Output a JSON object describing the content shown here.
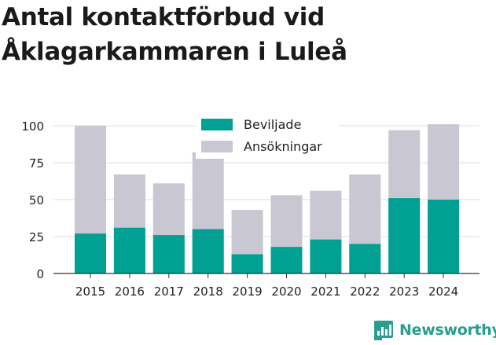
{
  "header": {
    "title": "Antal kontaktförbud vid Åklagarkammaren i Luleå"
  },
  "brand": {
    "name": "Newsworthy",
    "color": "#2a9d8f"
  },
  "chart_data": {
    "type": "bar",
    "stacked": false,
    "overlay": true,
    "categories": [
      "2015",
      "2016",
      "2017",
      "2018",
      "2019",
      "2020",
      "2021",
      "2022",
      "2023",
      "2024"
    ],
    "series": [
      {
        "name": "Ansökningar",
        "color": "#c8c7d2",
        "values": [
          100,
          67,
          61,
          82,
          43,
          53,
          56,
          67,
          97,
          101
        ]
      },
      {
        "name": "Beviljade",
        "color": "#00a093",
        "values": [
          27,
          31,
          26,
          30,
          13,
          18,
          23,
          20,
          51,
          50
        ]
      }
    ],
    "yticks": [
      0,
      25,
      50,
      75,
      100
    ],
    "ylim": [
      0,
      100
    ],
    "grid": true,
    "legend": {
      "position": "top-center",
      "items": [
        "Beviljade",
        "Ansökningar"
      ]
    }
  }
}
